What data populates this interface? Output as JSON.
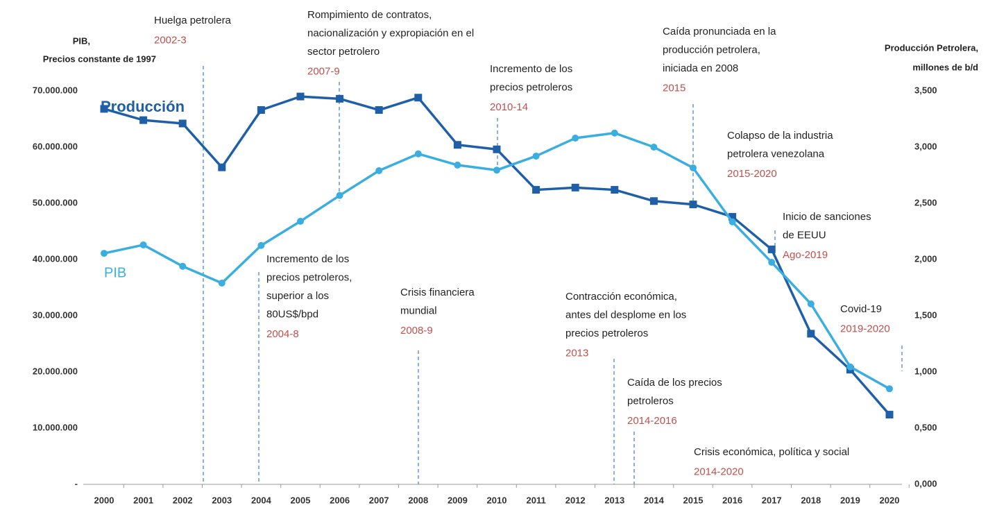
{
  "chart_data": {
    "type": "line",
    "ylabel": [
      "PIB,",
      "Precios constante de 1997"
    ],
    "y2label": [
      "Producción Petrolera,",
      "millones de b/d"
    ],
    "categories": [
      "2000",
      "2001",
      "2002",
      "2003",
      "2004",
      "2005",
      "2006",
      "2007",
      "2008",
      "2009",
      "2010",
      "2011",
      "2012",
      "2013",
      "2014",
      "2015",
      "2016",
      "2017",
      "2018",
      "2019",
      "2020"
    ],
    "ylim": [
      0,
      70000000
    ],
    "yticks": [
      {
        "value": 0,
        "label": "-"
      },
      {
        "value": 10000000,
        "label": "10.000.000"
      },
      {
        "value": 20000000,
        "label": "20.000.000"
      },
      {
        "value": 30000000,
        "label": "30.000.000"
      },
      {
        "value": 40000000,
        "label": "40.000.000"
      },
      {
        "value": 50000000,
        "label": "50.000.000"
      },
      {
        "value": 60000000,
        "label": "60.000.000"
      },
      {
        "value": 70000000,
        "label": "70.000.000"
      }
    ],
    "y2lim": [
      0,
      3500
    ],
    "y2ticks": [
      {
        "value": 0,
        "label": "0,000"
      },
      {
        "value": 500,
        "label": "0,500"
      },
      {
        "value": 1000,
        "label": "1,000"
      },
      {
        "value": 1500,
        "label": "1,500"
      },
      {
        "value": 2000,
        "label": "2,000"
      },
      {
        "value": 2500,
        "label": "2,500"
      },
      {
        "value": 3000,
        "label": "3,000"
      },
      {
        "value": 3500,
        "label": "3,500"
      }
    ],
    "series": [
      {
        "name": "Producción",
        "color": "#1f5fa8",
        "axis": "y2",
        "marker": "square",
        "values": [
          3340,
          3240,
          3210,
          2820,
          3330,
          3450,
          3430,
          3330,
          3440,
          3020,
          2980,
          2620,
          2640,
          2620,
          2520,
          2490,
          2380,
          2090,
          1340,
          1020,
          620
        ]
      },
      {
        "name": "PIB",
        "color": "#3aaee0",
        "axis": "y",
        "marker": "circle",
        "values": [
          41100000,
          42600000,
          38800000,
          35800000,
          42500000,
          46800000,
          51400000,
          55800000,
          58800000,
          56800000,
          55900000,
          58400000,
          61600000,
          62500000,
          60000000,
          56300000,
          46700000,
          39500000,
          32100000,
          20900000,
          17000000
        ]
      }
    ],
    "annotations": [
      {
        "lines": [
          "Huelga petrolera"
        ],
        "period": "2002-3"
      },
      {
        "lines": [
          "Rompimiento de contratos,",
          "nacionalización y expropiación en el",
          "sector petrolero"
        ],
        "period": "2007-9"
      },
      {
        "lines": [
          "Incremento de los",
          "precios petroleros"
        ],
        "period": "2010-14"
      },
      {
        "lines": [
          "Caída pronunciada en la",
          "producción petrolera,",
          "iniciada en 2008"
        ],
        "period": "2015"
      },
      {
        "lines": [
          "Colapso de la industria",
          "petrolera venezolana"
        ],
        "period": "2015-2020"
      },
      {
        "lines": [
          "Inicio de sanciones",
          "de EEUU"
        ],
        "period": "Ago-2019"
      },
      {
        "lines": [
          "Incremento de los",
          "precios petroleros,",
          "superior a los",
          "80US$/bpd"
        ],
        "period": "2004-8"
      },
      {
        "lines": [
          "Crisis financiera",
          "mundial"
        ],
        "period": "2008-9"
      },
      {
        "lines": [
          "Contracción económica,",
          "antes del desplome en los",
          "precios petroleros"
        ],
        "period": "2013"
      },
      {
        "lines": [
          "Caída de los precios",
          "petroleros"
        ],
        "period": "2014-2016"
      },
      {
        "lines": [
          "Crisis económica, política y social"
        ],
        "period": "2014-2020"
      },
      {
        "lines": [
          "Covid-19"
        ],
        "period": "2019-2020"
      }
    ]
  }
}
